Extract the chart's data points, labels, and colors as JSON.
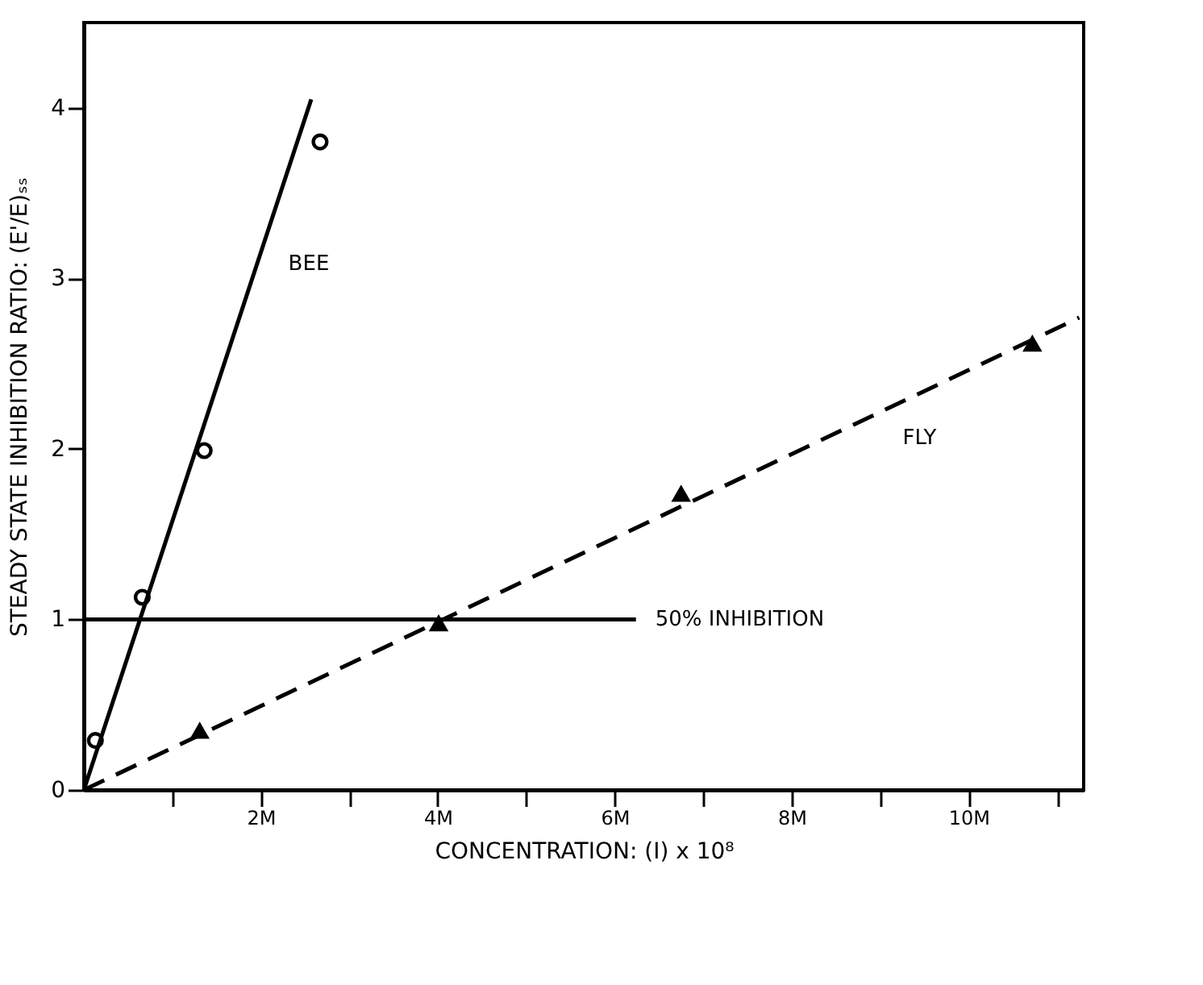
{
  "chart_data": {
    "type": "scatter",
    "xlabel": "CONCENTRATION:  (I)  x  10⁸",
    "ylabel": "STEADY STATE INHIBITION RATIO:  (E'/E)ₛₛ",
    "xlim": [
      0,
      11.3
    ],
    "ylim": [
      0,
      4.5
    ],
    "xticks": [
      {
        "value": 1,
        "label": null
      },
      {
        "value": 2,
        "label": "2M"
      },
      {
        "value": 3,
        "label": null
      },
      {
        "value": 4,
        "label": "4M"
      },
      {
        "value": 5,
        "label": null
      },
      {
        "value": 6,
        "label": "6M"
      },
      {
        "value": 7,
        "label": null
      },
      {
        "value": 8,
        "label": "8M"
      },
      {
        "value": 9,
        "label": null
      },
      {
        "value": 10,
        "label": "10M"
      },
      {
        "value": 11,
        "label": null
      }
    ],
    "yticks": [
      0,
      1,
      2,
      3,
      4
    ],
    "grid": false,
    "series": [
      {
        "color": "#000000",
        "marker": "circle",
        "x": [
          0.13,
          0.66,
          1.36,
          2.67
        ],
        "values": [
          0.29,
          1.13,
          1.99,
          3.8
        ]
      },
      {
        "type": "line",
        "name": "BEE",
        "color": "#000000",
        "line_style": "solid",
        "marker": "none",
        "x": [
          0,
          2.57
        ],
        "values": [
          0,
          4.05
        ]
      },
      {
        "type": "scatter",
        "color": "#000000",
        "marker": "triangle",
        "x": [
          1.31,
          4.01,
          6.75,
          10.72
        ],
        "values": [
          0.35,
          0.98,
          1.74,
          2.62
        ]
      },
      {
        "type": "line",
        "name": "FLY",
        "color": "#000000",
        "line_style": "dashed",
        "marker": "none",
        "x": [
          0,
          11.25
        ],
        "values": [
          0,
          2.77
        ]
      },
      {
        "type": "line",
        "name": "50% INHIBITION",
        "color": "#000000",
        "line_style": "solid",
        "marker": "none",
        "x": [
          0,
          6.24
        ],
        "values": [
          1,
          1
        ]
      }
    ]
  }
}
